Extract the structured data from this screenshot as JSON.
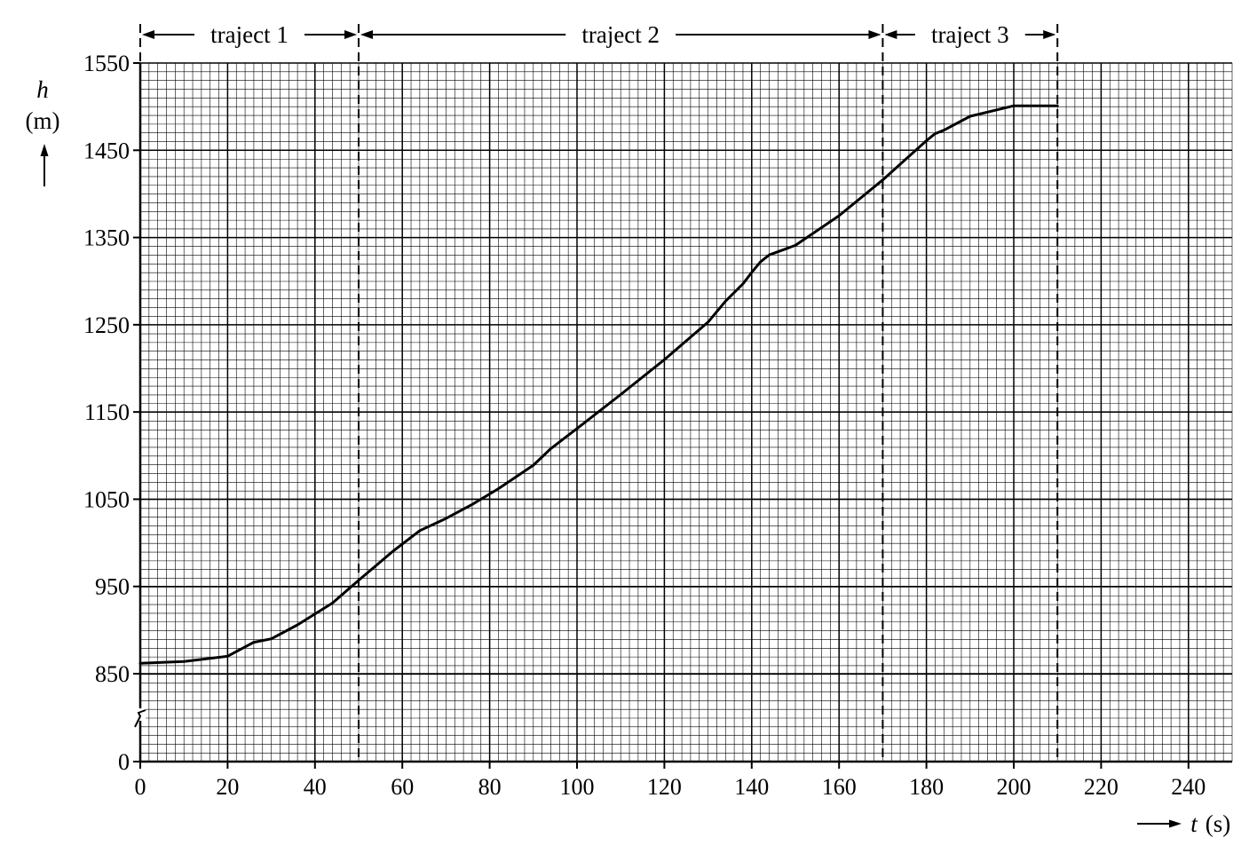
{
  "chart_data": {
    "type": "line",
    "title": "",
    "xlabel": {
      "var": "t",
      "unit": "(s)"
    },
    "ylabel": {
      "var": "h",
      "unit": "(m)"
    },
    "xlim": [
      0,
      250
    ],
    "ylim": [
      850,
      1550
    ],
    "y_axis_break": true,
    "y_origin_label": "0",
    "grid": true,
    "xticks": [
      "0",
      "20",
      "40",
      "60",
      "80",
      "100",
      "120",
      "140",
      "160",
      "180",
      "200",
      "220",
      "240"
    ],
    "yticks": [
      "0",
      "850",
      "950",
      "1050",
      "1150",
      "1250",
      "1350",
      "1450",
      "1550"
    ],
    "segments": [
      {
        "label": "traject 1",
        "start": 0,
        "end": 50
      },
      {
        "label": "traject 2",
        "start": 50,
        "end": 170
      },
      {
        "label": "traject 3",
        "start": 170,
        "end": 210
      }
    ],
    "series": [
      {
        "x": [
          0,
          10,
          20,
          26,
          30,
          36,
          44,
          50,
          58,
          64,
          70,
          76,
          82,
          90,
          94,
          100,
          110,
          120,
          130,
          134,
          138,
          140,
          142,
          144,
          150,
          160,
          170,
          180,
          182,
          184,
          190,
          200,
          210
        ],
        "values": [
          862,
          864,
          870,
          886,
          890,
          906,
          931,
          957,
          991,
          1014,
          1028,
          1044,
          1062,
          1089,
          1108,
          1131,
          1170,
          1210,
          1253,
          1277,
          1297,
          1310,
          1322,
          1330,
          1341,
          1375,
          1416,
          1461,
          1469,
          1473,
          1489,
          1501,
          1501
        ]
      }
    ]
  }
}
